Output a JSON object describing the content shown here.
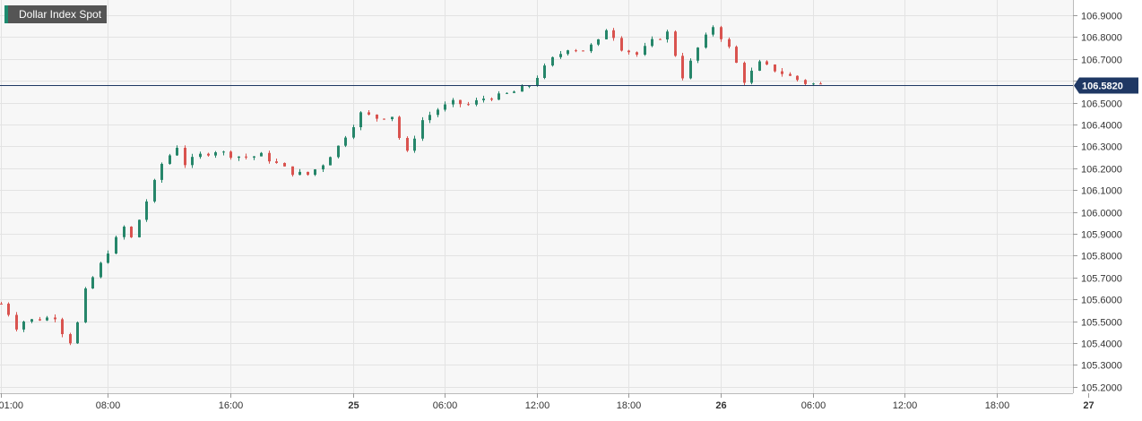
{
  "chart_data": {
    "type": "candlestick",
    "title": "Dollar Index Spot",
    "last_price": "106.5820",
    "last_price_value": 106.582,
    "ylim": [
      105.17,
      106.97
    ],
    "y_ticks": [
      {
        "value": 106.9,
        "label": "106.9000"
      },
      {
        "value": 106.8,
        "label": "106.8000"
      },
      {
        "value": 106.7,
        "label": "106.7000"
      },
      {
        "value": 106.6,
        "label": "106.6000"
      },
      {
        "value": 106.5,
        "label": "106.5000"
      },
      {
        "value": 106.4,
        "label": "106.4000"
      },
      {
        "value": 106.3,
        "label": "106.3000"
      },
      {
        "value": 106.2,
        "label": "106.2000"
      },
      {
        "value": 106.1,
        "label": "106.1000"
      },
      {
        "value": 106.0,
        "label": "106.0000"
      },
      {
        "value": 105.9,
        "label": "105.9000"
      },
      {
        "value": 105.8,
        "label": "105.8000"
      },
      {
        "value": 105.7,
        "label": "105.7000"
      },
      {
        "value": 105.6,
        "label": "105.6000"
      },
      {
        "value": 105.5,
        "label": "105.5000"
      },
      {
        "value": 105.4,
        "label": "105.4000"
      },
      {
        "value": 105.3,
        "label": "105.3000"
      },
      {
        "value": 105.2,
        "label": "105.2000"
      }
    ],
    "x_range_hours": [
      0.95,
      71.0
    ],
    "x_ticks": [
      {
        "hour": 1,
        "label": "01:00",
        "bold": false
      },
      {
        "hour": 8,
        "label": "08:00",
        "bold": false
      },
      {
        "hour": 16,
        "label": "16:00",
        "bold": false
      },
      {
        "hour": 24,
        "label": "25",
        "bold": true
      },
      {
        "hour": 30,
        "label": "06:00",
        "bold": false
      },
      {
        "hour": 36,
        "label": "12:00",
        "bold": false
      },
      {
        "hour": 42,
        "label": "18:00",
        "bold": false
      },
      {
        "hour": 48,
        "label": "26",
        "bold": true
      },
      {
        "hour": 54,
        "label": "06:00",
        "bold": false
      },
      {
        "hour": 60,
        "label": "12:00",
        "bold": false
      },
      {
        "hour": 66,
        "label": "18:00",
        "bold": false
      },
      {
        "hour": 72,
        "label": "27",
        "bold": true
      }
    ],
    "colors": {
      "up": "#26866a",
      "down": "#d9534f",
      "last_price_line": "#1f3864",
      "grid": "#e3e3e3",
      "plot_bg": "#f7f7f7",
      "legend_bg": "#555555",
      "legend_accent": "#1d8a6e"
    },
    "grid": true,
    "price_path": [
      [
        1.0,
        105.58
      ],
      [
        1.4,
        105.62
      ],
      [
        1.6,
        105.45
      ],
      [
        2.5,
        105.5
      ],
      [
        4.5,
        105.52
      ],
      [
        5.0,
        105.45
      ],
      [
        5.8,
        105.38
      ],
      [
        6.2,
        105.6
      ],
      [
        7.0,
        105.7
      ],
      [
        8.0,
        105.82
      ],
      [
        9.0,
        105.93
      ],
      [
        9.5,
        105.88
      ],
      [
        10.5,
        106.05
      ],
      [
        11.5,
        106.22
      ],
      [
        12.5,
        106.3
      ],
      [
        13.0,
        106.22
      ],
      [
        14.0,
        106.26
      ],
      [
        15.0,
        106.28
      ],
      [
        16.0,
        106.26
      ],
      [
        17.0,
        106.25
      ],
      [
        18.0,
        106.26
      ],
      [
        19.0,
        106.22
      ],
      [
        20.0,
        106.18
      ],
      [
        21.0,
        106.17
      ],
      [
        22.0,
        106.22
      ],
      [
        23.0,
        106.3
      ],
      [
        24.0,
        106.4
      ],
      [
        24.5,
        106.45
      ],
      [
        25.5,
        106.43
      ],
      [
        26.5,
        106.44
      ],
      [
        27.0,
        106.34
      ],
      [
        27.5,
        106.27
      ],
      [
        28.5,
        106.42
      ],
      [
        29.5,
        106.47
      ],
      [
        30.5,
        106.5
      ],
      [
        31.5,
        106.49
      ],
      [
        32.5,
        106.52
      ],
      [
        33.5,
        106.53
      ],
      [
        34.5,
        106.55
      ],
      [
        35.5,
        106.58
      ],
      [
        36.0,
        106.62
      ],
      [
        37.0,
        106.7
      ],
      [
        38.0,
        106.75
      ],
      [
        39.0,
        106.74
      ],
      [
        40.0,
        106.78
      ],
      [
        40.6,
        106.85
      ],
      [
        41.5,
        106.75
      ],
      [
        42.5,
        106.72
      ],
      [
        43.5,
        106.78
      ],
      [
        44.5,
        106.82
      ],
      [
        45.0,
        106.72
      ],
      [
        45.5,
        106.62
      ],
      [
        46.5,
        106.75
      ],
      [
        47.5,
        106.85
      ],
      [
        48.0,
        106.8
      ],
      [
        48.5,
        106.75
      ],
      [
        49.0,
        106.68
      ],
      [
        49.5,
        106.6
      ],
      [
        50.5,
        106.68
      ],
      [
        51.5,
        106.65
      ],
      [
        52.5,
        106.62
      ],
      [
        53.5,
        106.59
      ],
      [
        54.5,
        106.582
      ]
    ]
  }
}
